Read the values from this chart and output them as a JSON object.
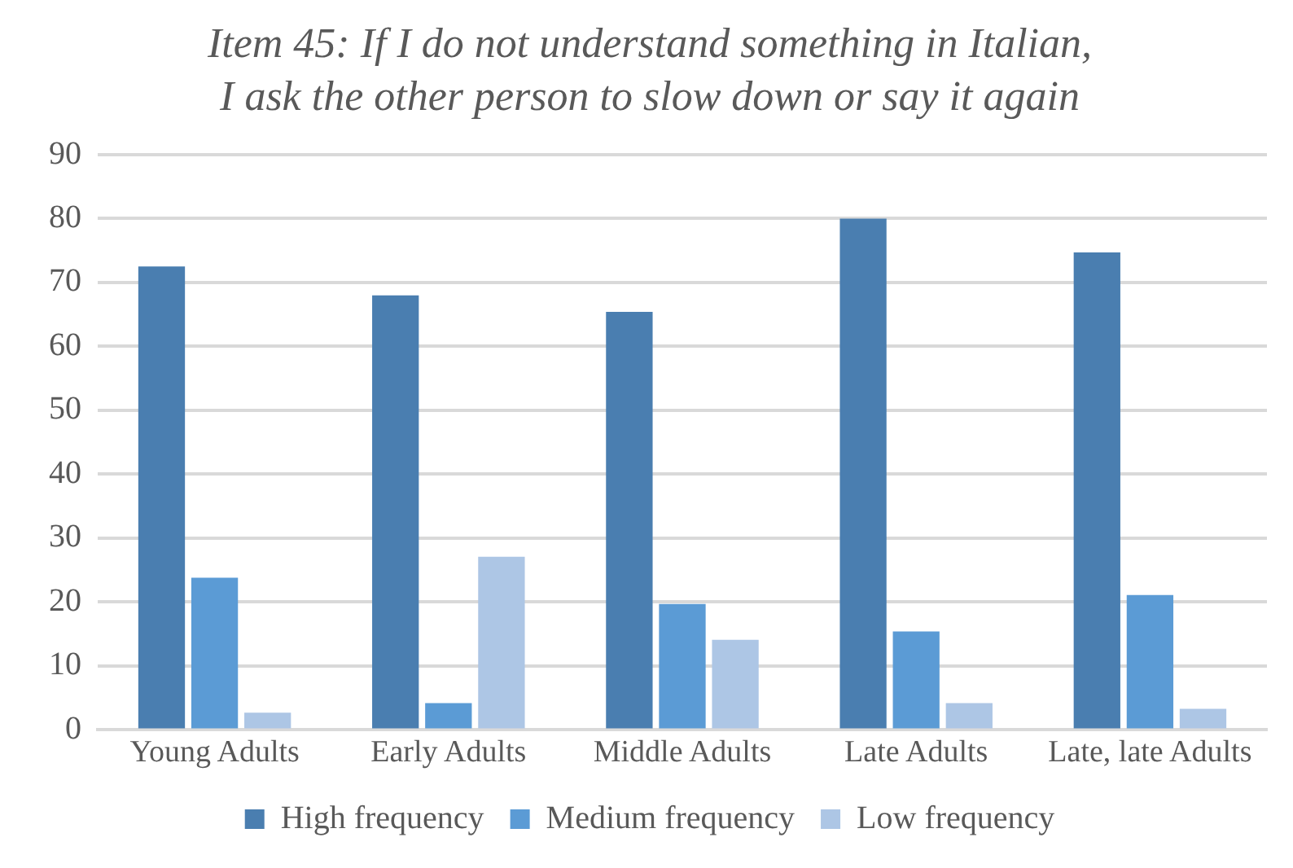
{
  "chart_data": {
    "type": "bar",
    "title": "Item 45: If I do not understand something in Italian,\nI ask the other person to slow down or say it again",
    "categories": [
      "Young Adults",
      "Early Adults",
      "Middle Adults",
      "Late Adults",
      "Late, late Adults"
    ],
    "series": [
      {
        "name": "High frequency",
        "color": "#4a7eb0",
        "values": [
          72.5,
          68,
          65.4,
          80,
          74.7
        ]
      },
      {
        "name": "Medium frequency",
        "color": "#5b9bd5",
        "values": [
          23.8,
          4.2,
          19.7,
          15.4,
          21.1
        ]
      },
      {
        "name": "Low frequency",
        "color": "#adc6e5",
        "values": [
          2.7,
          27.1,
          14.1,
          4.2,
          3.3
        ]
      }
    ],
    "ylim": [
      0,
      90
    ],
    "yticks": [
      0,
      10,
      20,
      30,
      40,
      50,
      60,
      70,
      80,
      90
    ],
    "grid": "y",
    "legend": "bottom"
  }
}
